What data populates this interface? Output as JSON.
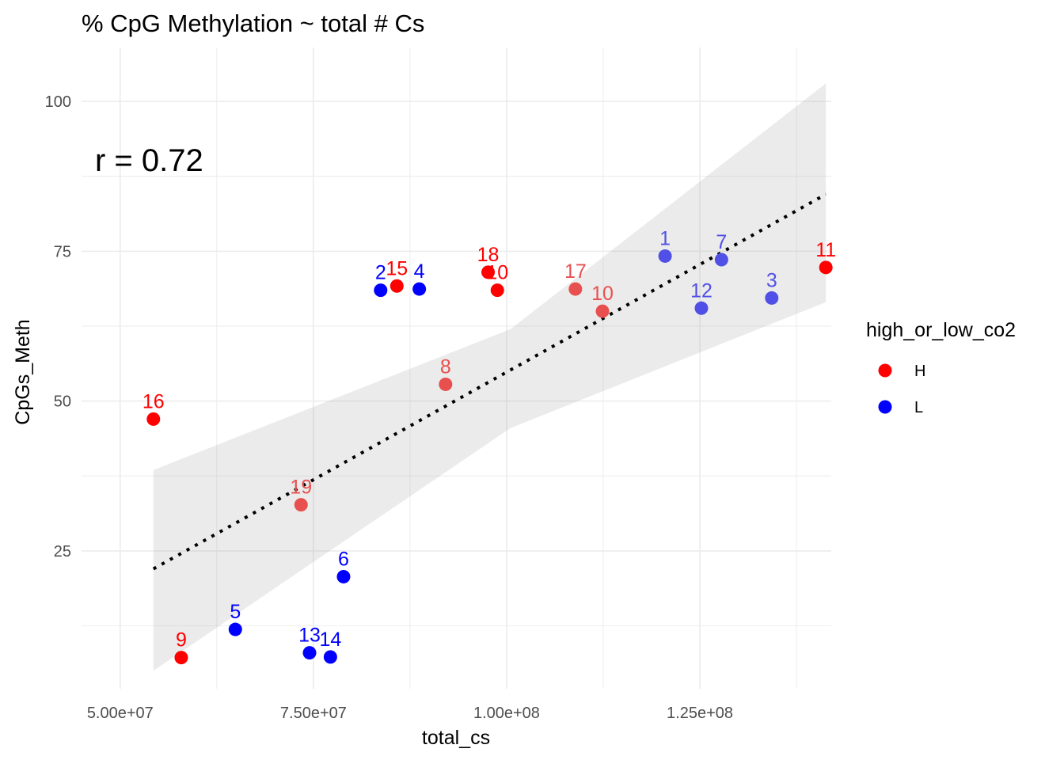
{
  "chart_data": {
    "type": "scatter",
    "title": "% CpG Methylation ~ total # Cs",
    "xlabel": "total_cs",
    "ylabel": "CpGs_Meth",
    "xlim": [
      45000000,
      142000000
    ],
    "ylim": [
      2,
      109
    ],
    "x_ticks": [
      50000000,
      75000000,
      100000000,
      125000000
    ],
    "x_tick_labels": [
      "5.00e+07",
      "7.50e+07",
      "1.00e+08",
      "1.25e+08"
    ],
    "y_ticks": [
      25,
      50,
      75,
      100
    ],
    "y_tick_labels": [
      "25",
      "50",
      "75",
      "100"
    ],
    "grid": true,
    "annotation": "r = 0.72",
    "trend": {
      "x0": 54300000,
      "y0": 22.0,
      "x1": 141300000,
      "y1": 84.5,
      "band_lower": [
        5.0,
        45.5,
        66.5
      ],
      "band_upper": [
        38.5,
        62.0,
        103.0
      ],
      "band_x": [
        54300000,
        100500000,
        141300000
      ]
    },
    "legend": {
      "title": "high_or_low_co2",
      "position": "right",
      "entries": [
        {
          "label": "H",
          "color": "#ff0000"
        },
        {
          "label": "L",
          "color": "#0000ff"
        }
      ]
    },
    "points": [
      {
        "label": "1",
        "x": 120500000,
        "y": 74.2,
        "group": "L",
        "color": "#5050e6"
      },
      {
        "label": "2",
        "x": 83700000,
        "y": 68.5,
        "group": "L",
        "color": "#0000ff"
      },
      {
        "label": "3",
        "x": 134300000,
        "y": 67.2,
        "group": "L",
        "color": "#5050e6"
      },
      {
        "label": "4",
        "x": 88700000,
        "y": 68.7,
        "group": "L",
        "color": "#0000ff"
      },
      {
        "label": "5",
        "x": 64900000,
        "y": 11.9,
        "group": "L",
        "color": "#0000ff"
      },
      {
        "label": "6",
        "x": 78900000,
        "y": 20.7,
        "group": "L",
        "color": "#0000ff"
      },
      {
        "label": "7",
        "x": 127800000,
        "y": 73.6,
        "group": "L",
        "color": "#5050e6"
      },
      {
        "label": "8",
        "x": 92100000,
        "y": 52.8,
        "group": "H",
        "color": "#e85050"
      },
      {
        "label": "9",
        "x": 57900000,
        "y": 7.2,
        "group": "H",
        "color": "#ff0000"
      },
      {
        "label": "10",
        "x": 98800000,
        "y": 68.5,
        "group": "H",
        "color": "#ff0000"
      },
      {
        "label": "10",
        "x": 112400000,
        "y": 65.0,
        "group": "H",
        "color": "#e85050"
      },
      {
        "label": "11",
        "x": 141300000,
        "y": 72.3,
        "group": "H",
        "color": "#ff0000"
      },
      {
        "label": "12",
        "x": 125200000,
        "y": 65.5,
        "group": "L",
        "color": "#5050e6"
      },
      {
        "label": "13",
        "x": 74500000,
        "y": 8.0,
        "group": "L",
        "color": "#0000ff"
      },
      {
        "label": "14",
        "x": 77200000,
        "y": 7.3,
        "group": "L",
        "color": "#0000ff"
      },
      {
        "label": "15",
        "x": 85800000,
        "y": 69.2,
        "group": "H",
        "color": "#ff0000"
      },
      {
        "label": "16",
        "x": 54300000,
        "y": 47.0,
        "group": "H",
        "color": "#ff0000"
      },
      {
        "label": "17",
        "x": 108900000,
        "y": 68.7,
        "group": "H",
        "color": "#e85050"
      },
      {
        "label": "18",
        "x": 97600000,
        "y": 71.5,
        "group": "H",
        "color": "#ff0000"
      },
      {
        "label": "19",
        "x": 73400000,
        "y": 32.7,
        "group": "H",
        "color": "#e85050"
      }
    ]
  }
}
